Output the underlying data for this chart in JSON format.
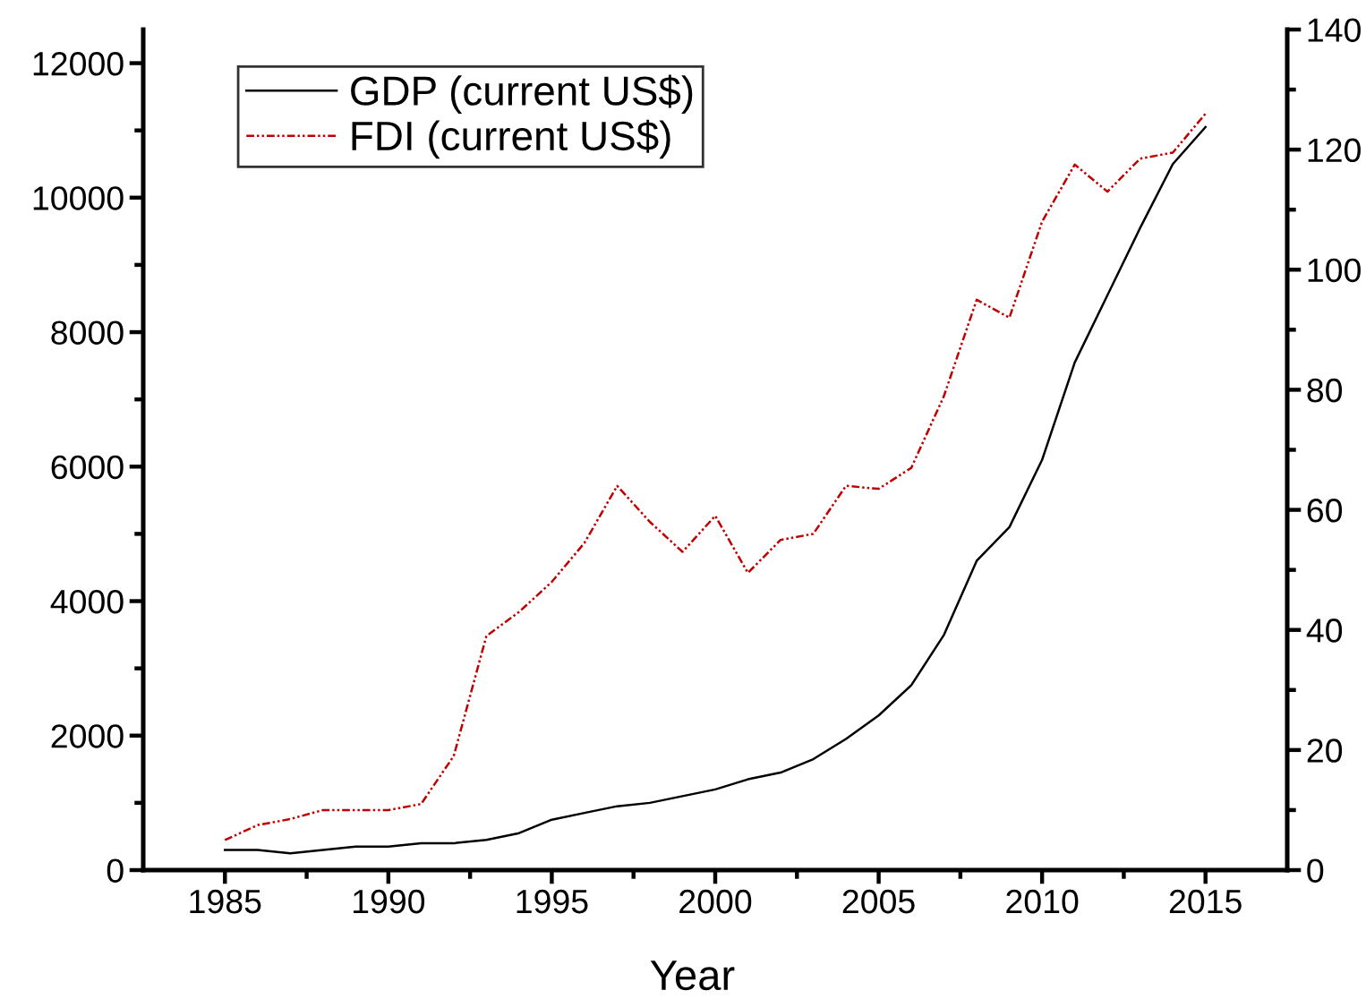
{
  "chart_data": {
    "type": "line",
    "xlabel": "Year",
    "x": [
      1985,
      1986,
      1987,
      1988,
      1989,
      1990,
      1991,
      1992,
      1993,
      1994,
      1995,
      1996,
      1997,
      1998,
      1999,
      2000,
      2001,
      2002,
      2003,
      2004,
      2005,
      2006,
      2007,
      2008,
      2009,
      2010,
      2011,
      2012,
      2013,
      2014,
      2015
    ],
    "series": [
      {
        "name": "GDP (current US$)",
        "color": "#000000",
        "line_style": "solid",
        "values": [
          300,
          300,
          250,
          300,
          350,
          350,
          400,
          400,
          450,
          550,
          750,
          850,
          950,
          1000,
          1100,
          1200,
          1350,
          1450,
          1650,
          1950,
          2300,
          2750,
          3500,
          4600,
          5100,
          6100,
          7550,
          8550,
          9550,
          10500,
          11050
        ]
      },
      {
        "name": "FDI (current US$)",
        "color": "#c00000",
        "line_style": "dashed",
        "axis": "y2",
        "values": [
          5,
          7.5,
          8.5,
          10,
          10,
          10,
          11,
          19,
          39,
          43,
          48,
          54.5,
          64,
          58,
          53,
          59,
          49.5,
          55,
          56,
          64,
          63.5,
          67,
          79,
          95,
          92,
          108,
          117.5,
          113,
          118.5,
          119.5,
          126
        ]
      }
    ],
    "xlim": [
      1982.5,
      2017.5
    ],
    "xticks": [
      1985,
      {
        "value": 1987.5,
        "label": null
      },
      1990,
      {
        "value": 1992.5,
        "label": null
      },
      1995,
      {
        "value": 1997.5,
        "label": null
      },
      2000,
      {
        "value": 2002.5,
        "label": null
      },
      2005,
      {
        "value": 2007.5,
        "label": null
      },
      2010,
      {
        "value": 2012.5,
        "label": null
      },
      2015
    ],
    "ylim": [
      0,
      12500
    ],
    "yticks": [
      0,
      {
        "value": 1000,
        "label": null
      },
      2000,
      {
        "value": 3000,
        "label": null
      },
      4000,
      {
        "value": 5000,
        "label": null
      },
      6000,
      {
        "value": 7000,
        "label": null
      },
      8000,
      {
        "value": 9000,
        "label": null
      },
      10000,
      {
        "value": 11000,
        "label": null
      },
      12000
    ],
    "y2lim": [
      0,
      140
    ],
    "y2ticks": [
      0,
      {
        "value": 10,
        "label": null
      },
      20,
      {
        "value": 30,
        "label": null
      },
      40,
      {
        "value": 50,
        "label": null
      },
      60,
      {
        "value": 70,
        "label": null
      },
      80,
      {
        "value": 90,
        "label": null
      },
      100,
      {
        "value": 110,
        "label": null
      },
      120,
      {
        "value": 130,
        "label": null
      },
      140
    ],
    "legend": "top left",
    "grid": false,
    "marker": "none"
  }
}
